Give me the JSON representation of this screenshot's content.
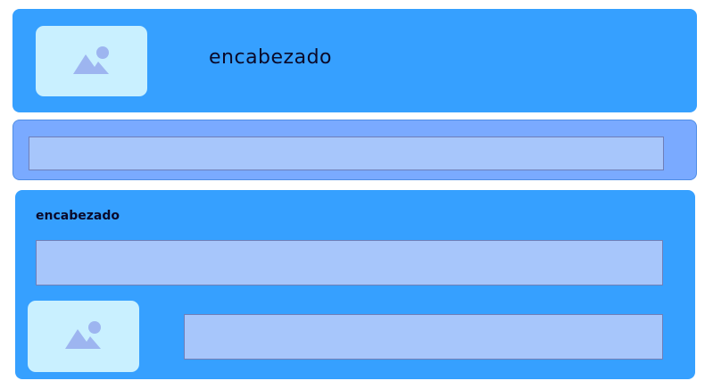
{
  "header": {
    "title": "encabezado",
    "image_icon": "image-placeholder-icon"
  },
  "nav": {
    "input_value": ""
  },
  "content": {
    "title": "encabezado",
    "top_field_value": "",
    "bottom_field_value": "",
    "image_icon": "image-placeholder-icon"
  },
  "colors": {
    "panel_blue": "#36a0ff",
    "nav_blue": "#7aaaff",
    "field_blue": "#a7c6fb",
    "image_bg": "#c9f0ff",
    "icon_color": "#9db5f0"
  }
}
